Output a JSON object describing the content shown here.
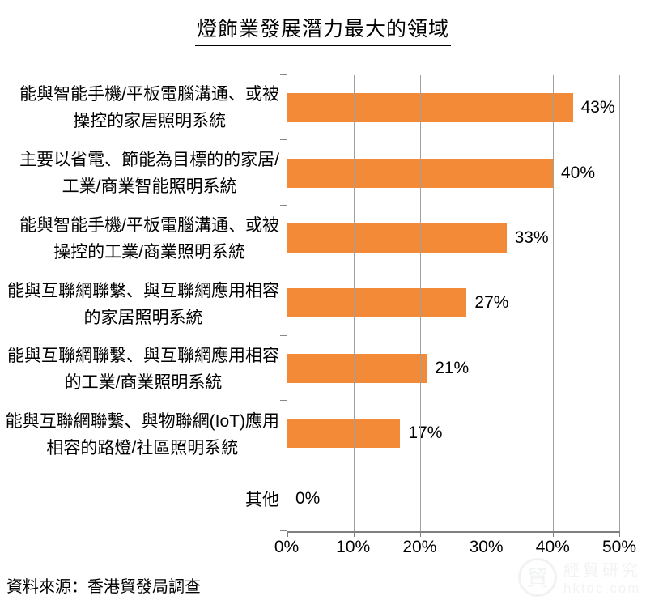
{
  "chart_data": {
    "type": "bar",
    "orientation": "horizontal",
    "title": "燈飾業發展潛力最大的領域",
    "categories": [
      "能與智能手機/平板電腦溝通、或被操控的家居照明系統",
      "主要以省電、節能為目標的的家居/工業/商業智能照明系統",
      "能與智能手機/平板電腦溝通、或被操控的工業/商業照明系統",
      "能與互聯網聯繫、與互聯網應用相容的家居照明系統",
      "能與互聯網聯繫、與互聯網應用相容的工業/商業照明系統",
      "能與互聯網聯繫、與物聯網(IoT)應用相容的路燈/社區照明系統",
      "其他"
    ],
    "values": [
      43,
      40,
      33,
      27,
      21,
      17,
      0
    ],
    "rows": [
      {
        "line1": "能與智能手機/平板電腦溝通、或被",
        "line2": "操控的家居照明系統",
        "value": 43,
        "value_label": "43%"
      },
      {
        "line1": "主要以省電、節能為目標的的家居/",
        "line2": "工業/商業智能照明系統",
        "value": 40,
        "value_label": "40%"
      },
      {
        "line1": "能與智能手機/平板電腦溝通、或被",
        "line2": "操控的工業/商業照明系統",
        "value": 33,
        "value_label": "33%"
      },
      {
        "line1": "能與互聯網聯繫、與互聯網應用相容",
        "line2": "的家居照明系統",
        "value": 27,
        "value_label": "27%"
      },
      {
        "line1": "能與互聯網聯繫、與互聯網應用相容",
        "line2": "的工業/商業照明系統",
        "value": 21,
        "value_label": "21%"
      },
      {
        "line1": "能與互聯網聯繫、與物聯網(IoT)應用",
        "line2": "相容的路燈/社區照明系統",
        "value": 17,
        "value_label": "17%"
      },
      {
        "line1": "其他",
        "line2": "",
        "value": 0,
        "value_label": "0%"
      }
    ],
    "xlabel": "",
    "ylabel": "",
    "xlim": [
      0,
      50
    ],
    "xticks": [
      "0%",
      "10%",
      "20%",
      "30%",
      "40%",
      "50%"
    ],
    "grid": true,
    "legend": "none",
    "bar_color": "#f28a38",
    "gridline_color": "#a0a0a0"
  },
  "source_note": "資料來源：香港貿發局調查",
  "watermark": {
    "logo_glyph": "貿",
    "line1": "經貿研究",
    "line2": "hktdc.com"
  }
}
